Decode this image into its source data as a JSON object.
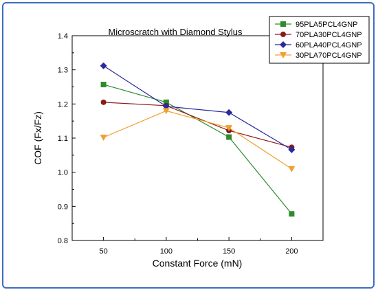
{
  "chart_data": {
    "type": "line",
    "title": "Microscratch with Diamond Stylus",
    "xlabel": "Constant Force (mN)",
    "ylabel": "COF (Fx/Fz)",
    "x": [
      50,
      100,
      150,
      200
    ],
    "x_tick_labels": [
      "50",
      "100",
      "150",
      "200"
    ],
    "xlim": [
      25,
      225
    ],
    "ylim": [
      0.8,
      1.4
    ],
    "y_tick_labels": [
      "0.8",
      "0.9",
      "1.0",
      "1.1",
      "1.2",
      "1.3",
      "1.4"
    ],
    "grid": false,
    "legend_position": "top-right",
    "series": [
      {
        "name": "95PLA5PCL4GNP",
        "values": [
          1.257,
          1.205,
          1.103,
          0.878
        ],
        "color": "#2e8b2e",
        "marker": "square"
      },
      {
        "name": "70PLA30PCL4GNP",
        "values": [
          1.205,
          1.195,
          1.122,
          1.073
        ],
        "color": "#8b1a1a",
        "marker": "circle"
      },
      {
        "name": "60PLA40PCL4GNP",
        "values": [
          1.312,
          1.193,
          1.175,
          1.066
        ],
        "color": "#2a2aa0",
        "marker": "diamond"
      },
      {
        "name": "30PLA70PCL4GNP",
        "values": [
          1.102,
          1.18,
          1.13,
          1.01
        ],
        "color": "#f0a030",
        "marker": "triangle-down"
      }
    ]
  }
}
